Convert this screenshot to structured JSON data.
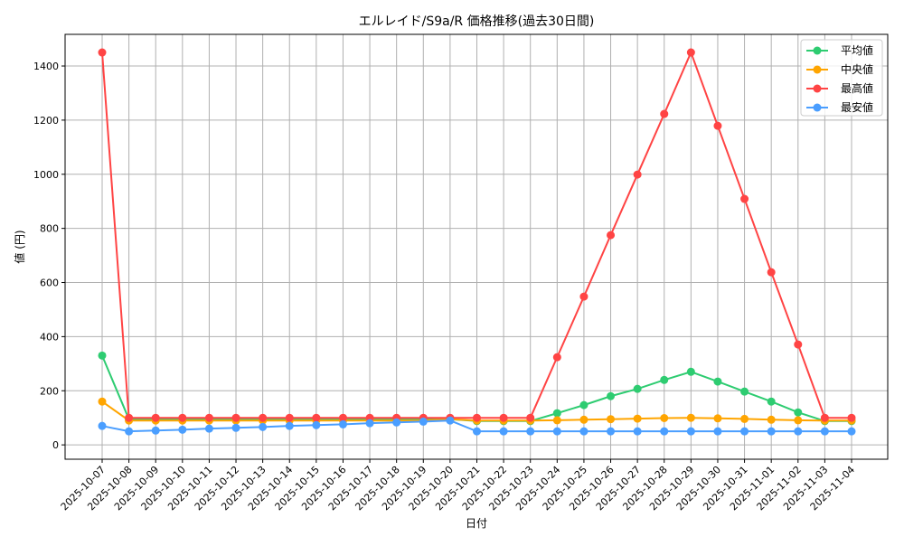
{
  "chart_data": {
    "type": "line",
    "title": "エルレイド/S9a/R 価格推移(過去30日間)",
    "xlabel": "日付",
    "ylabel": "値 (円)",
    "ylim": [
      -53,
      1517
    ],
    "yticks": [
      0,
      200,
      400,
      600,
      800,
      1000,
      1200,
      1400
    ],
    "grid": true,
    "legend_position": "top-right",
    "x": [
      "2025-10-07",
      "2025-10-08",
      "2025-10-09",
      "2025-10-10",
      "2025-10-11",
      "2025-10-12",
      "2025-10-13",
      "2025-10-14",
      "2025-10-15",
      "2025-10-16",
      "2025-10-17",
      "2025-10-18",
      "2025-10-19",
      "2025-10-20",
      "2025-10-21",
      "2025-10-22",
      "2025-10-23",
      "2025-10-24",
      "2025-10-25",
      "2025-10-26",
      "2025-10-27",
      "2025-10-28",
      "2025-10-29",
      "2025-10-30",
      "2025-10-31",
      "2025-11-01",
      "2025-11-02",
      "2025-11-03",
      "2025-11-04"
    ],
    "series": [
      {
        "name": "平均値",
        "color": "#2ecc71",
        "values": [
          330,
          95,
          95,
          95,
          95,
          95,
          95,
          95,
          95,
          95,
          95,
          95,
          95,
          95,
          88,
          88,
          88,
          117,
          147,
          180,
          207,
          240,
          270,
          234,
          197,
          160,
          120,
          88,
          88
        ]
      },
      {
        "name": "中央値",
        "color": "#ffa500",
        "values": [
          160,
          90,
          90,
          90,
          90,
          90,
          90,
          90,
          90,
          90,
          90,
          90,
          90,
          95,
          90,
          90,
          90,
          91,
          93,
          95,
          97,
          99,
          100,
          98,
          96,
          93,
          91,
          90,
          90
        ]
      },
      {
        "name": "最高値",
        "color": "#ff4444",
        "values": [
          1450,
          100,
          100,
          100,
          100,
          100,
          100,
          100,
          100,
          100,
          100,
          100,
          100,
          100,
          100,
          100,
          100,
          324,
          548,
          775,
          999,
          1223,
          1450,
          1179,
          909,
          638,
          371,
          100,
          100
        ]
      },
      {
        "name": "最安値",
        "color": "#4a9eff",
        "values": [
          70,
          50,
          53,
          56,
          60,
          63,
          66,
          70,
          73,
          76,
          80,
          83,
          86,
          90,
          50,
          50,
          50,
          50,
          50,
          50,
          50,
          50,
          50,
          50,
          50,
          50,
          50,
          50,
          50
        ]
      }
    ]
  }
}
